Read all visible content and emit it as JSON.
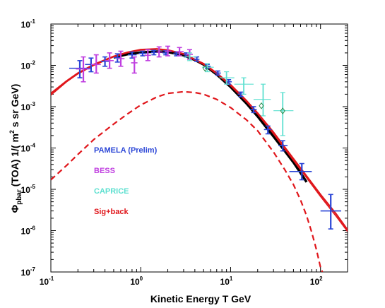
{
  "chart_data": {
    "type": "scatter",
    "xlabel": "Kinetic Energy T   GeV",
    "ylabel_parts": {
      "symbol": "Φ",
      "sub": "pbar",
      "mid": " (TOA)  1/( m",
      "sup": "2",
      "end": " s sr GeV)"
    },
    "x_scale": "log",
    "y_scale": "log",
    "xlim": [
      0.1,
      200
    ],
    "ylim": [
      1e-07,
      0.1
    ],
    "x_ticks": [
      {
        "base": "10",
        "exp": "-1"
      },
      {
        "base": "10",
        "exp": "0"
      },
      {
        "base": "10",
        "exp": "1"
      },
      {
        "base": "10",
        "exp": "2"
      }
    ],
    "y_ticks": [
      {
        "base": "10",
        "exp": "-7"
      },
      {
        "base": "10",
        "exp": "-6"
      },
      {
        "base": "10",
        "exp": "-5"
      },
      {
        "base": "10",
        "exp": "-4"
      },
      {
        "base": "10",
        "exp": "-3"
      },
      {
        "base": "10",
        "exp": "-2"
      },
      {
        "base": "10",
        "exp": "-1"
      }
    ],
    "legend": [
      {
        "label": "PAMELA (Prelim)",
        "color": "#2a45d6"
      },
      {
        "label": "BESS",
        "color": "#c03fe0"
      },
      {
        "label": "CAPRICE",
        "color": "#5ee0d0"
      },
      {
        "label": "Sig+back",
        "color": "#e0161b"
      }
    ],
    "legend_placement": "lower-left",
    "series": [
      {
        "color": "#2a45d6",
        "marker": "errorbar",
        "points": [
          [
            0.21,
            0.0085,
            0.005,
            0.013,
            0.16,
            0.28
          ],
          [
            0.28,
            0.0105,
            0.007,
            0.015,
            0.24,
            0.33
          ],
          [
            0.4,
            0.0125,
            0.0095,
            0.016,
            0.36,
            0.45
          ],
          [
            0.55,
            0.0155,
            0.012,
            0.019,
            0.5,
            0.6
          ],
          [
            0.8,
            0.018,
            0.015,
            0.021,
            0.72,
            0.9
          ],
          [
            1.05,
            0.0195,
            0.017,
            0.022,
            0.95,
            1.15
          ],
          [
            1.4,
            0.0205,
            0.018,
            0.023,
            1.3,
            1.5
          ],
          [
            1.9,
            0.02,
            0.018,
            0.0225,
            1.75,
            2.05
          ],
          [
            2.5,
            0.019,
            0.017,
            0.021,
            2.3,
            2.7
          ],
          [
            3.2,
            0.018,
            0.016,
            0.02,
            3.0,
            3.5
          ],
          [
            4.2,
            0.014,
            0.0125,
            0.016,
            3.9,
            4.5
          ],
          [
            5.5,
            0.0095,
            0.0085,
            0.0105,
            5.1,
            6.0
          ],
          [
            7.2,
            0.0065,
            0.0058,
            0.0073,
            6.7,
            7.8
          ],
          [
            9.5,
            0.004,
            0.0035,
            0.0045,
            8.8,
            10.3
          ],
          [
            13.0,
            0.002,
            0.00175,
            0.00225,
            12.0,
            14.0
          ],
          [
            18.0,
            0.00085,
            0.00072,
            0.001,
            16.5,
            19.5
          ],
          [
            26.0,
            0.00028,
            0.00022,
            0.00034,
            23.5,
            28.5
          ],
          [
            38.0,
            0.000115,
            8.5e-05,
            0.00015,
            34.0,
            43.0
          ],
          [
            62.0,
            2.7e-05,
            1.7e-05,
            4.2e-05,
            45.0,
            80.0
          ],
          [
            130.0,
            3e-06,
            1.1e-06,
            7.5e-06,
            100.0,
            170.0
          ]
        ]
      },
      {
        "color": "#c03fe0",
        "marker": "errorbar",
        "points": [
          [
            0.23,
            0.0082,
            0.004,
            0.016,
            0.19,
            0.27
          ],
          [
            0.32,
            0.0105,
            0.0065,
            0.018,
            0.28,
            0.36
          ],
          [
            0.45,
            0.013,
            0.0085,
            0.02,
            0.4,
            0.5
          ],
          [
            0.6,
            0.0145,
            0.0095,
            0.022,
            0.55,
            0.66
          ],
          [
            0.85,
            0.0115,
            0.0065,
            0.016,
            0.78,
            0.92
          ],
          [
            1.2,
            0.0175,
            0.013,
            0.024,
            1.1,
            1.3
          ],
          [
            1.6,
            0.021,
            0.016,
            0.028,
            1.5,
            1.75
          ],
          [
            2.0,
            0.022,
            0.017,
            0.029,
            1.85,
            2.2
          ],
          [
            2.7,
            0.0215,
            0.017,
            0.027,
            2.5,
            3.0
          ],
          [
            3.5,
            0.0185,
            0.014,
            0.024,
            3.2,
            3.8
          ]
        ]
      },
      {
        "color": "#5ee0d0",
        "marker": "errorbar",
        "points": [
          [
            3.5,
            0.016,
            0.013,
            0.02,
            3.0,
            4.2
          ],
          [
            5.5,
            0.009,
            0.007,
            0.011,
            4.8,
            6.5
          ],
          [
            9.0,
            0.005,
            0.0035,
            0.007,
            7.5,
            11.0
          ],
          [
            14.0,
            0.0035,
            0.002,
            0.005,
            11.0,
            18.0
          ],
          [
            23.0,
            0.0015,
            0.0006,
            0.0035,
            18.0,
            28.0
          ],
          [
            38.0,
            0.0008,
            0.0002,
            0.0022,
            30.0,
            50.0
          ]
        ]
      },
      {
        "color": "#2a8a4a",
        "marker": "diamond",
        "points": [
          [
            5.2,
            0.0085
          ],
          [
            22.0,
            0.00105
          ],
          [
            38.0,
            0.00079
          ]
        ]
      }
    ],
    "curves": [
      {
        "color": "#000000",
        "style": "solid",
        "width": 3.5,
        "points": [
          [
            0.5,
            0.0155
          ],
          [
            0.7,
            0.0185
          ],
          [
            1.0,
            0.0205
          ],
          [
            1.5,
            0.0215
          ],
          [
            2.0,
            0.021
          ],
          [
            3.0,
            0.0175
          ],
          [
            4.0,
            0.0135
          ],
          [
            5.0,
            0.0105
          ],
          [
            7.0,
            0.006
          ],
          [
            10.0,
            0.003
          ],
          [
            15.0,
            0.0012
          ],
          [
            20.0,
            0.00058
          ],
          [
            30.0,
            0.00019
          ],
          [
            40.0,
            8.5e-05
          ],
          [
            50.0,
            4.5e-05
          ],
          [
            60.0,
            2.5e-05
          ],
          [
            70.0,
            1.5e-05
          ]
        ]
      },
      {
        "color": "#e0161b",
        "style": "solid",
        "width": 2.2,
        "points": [
          [
            0.1,
            0.0021
          ],
          [
            0.15,
            0.0042
          ],
          [
            0.2,
            0.0065
          ],
          [
            0.3,
            0.0105
          ],
          [
            0.5,
            0.0165
          ],
          [
            0.7,
            0.0205
          ],
          [
            1.0,
            0.024
          ],
          [
            1.5,
            0.025
          ],
          [
            2.0,
            0.0235
          ],
          [
            3.0,
            0.019
          ],
          [
            5.0,
            0.011
          ],
          [
            7.0,
            0.0065
          ],
          [
            10.0,
            0.0034
          ],
          [
            15.0,
            0.0014
          ],
          [
            20.0,
            0.0007
          ],
          [
            30.0,
            0.00024
          ],
          [
            50.0,
            5.5e-05
          ],
          [
            70.0,
            2.1e-05
          ],
          [
            100.0,
            7.5e-06
          ],
          [
            150.0,
            2.5e-06
          ],
          [
            200.0,
            1.05e-06
          ]
        ]
      },
      {
        "color": "#e0161b",
        "style": "solid",
        "width": 1.6,
        "points": [
          [
            0.1,
            0.0019
          ],
          [
            0.15,
            0.004
          ],
          [
            0.2,
            0.0062
          ],
          [
            0.3,
            0.01
          ],
          [
            0.5,
            0.016
          ],
          [
            0.7,
            0.02
          ],
          [
            1.0,
            0.0235
          ],
          [
            1.5,
            0.0245
          ],
          [
            2.0,
            0.023
          ],
          [
            3.0,
            0.0185
          ],
          [
            5.0,
            0.0105
          ],
          [
            7.0,
            0.0062
          ],
          [
            10.0,
            0.0032
          ],
          [
            15.0,
            0.00132
          ],
          [
            20.0,
            0.00066
          ],
          [
            30.0,
            0.00022
          ],
          [
            50.0,
            5e-05
          ],
          [
            70.0,
            1.9e-05
          ],
          [
            100.0,
            6.7e-06
          ],
          [
            150.0,
            2.2e-06
          ],
          [
            200.0,
            9.5e-07
          ]
        ]
      },
      {
        "color": "#e0161b",
        "style": "dashed",
        "width": 2.2,
        "points": [
          [
            0.1,
            1.7e-05
          ],
          [
            0.15,
            3.8e-05
          ],
          [
            0.2,
            7e-05
          ],
          [
            0.3,
            0.00016
          ],
          [
            0.5,
            0.00038
          ],
          [
            0.7,
            0.00065
          ],
          [
            1.0,
            0.0011
          ],
          [
            1.5,
            0.0017
          ],
          [
            2.0,
            0.0021
          ],
          [
            3.0,
            0.0023
          ],
          [
            4.0,
            0.0022
          ],
          [
            5.0,
            0.002
          ],
          [
            7.0,
            0.0015
          ],
          [
            10.0,
            0.00095
          ],
          [
            15.0,
            0.00048
          ],
          [
            20.0,
            0.00026
          ],
          [
            30.0,
            8e-05
          ],
          [
            40.0,
            3e-05
          ],
          [
            50.0,
            1.3e-05
          ],
          [
            60.0,
            5.5e-06
          ],
          [
            70.0,
            2.3e-06
          ],
          [
            80.0,
            9e-07
          ],
          [
            90.0,
            3.5e-07
          ],
          [
            100.0,
            1.3e-07
          ],
          [
            105.0,
            1e-07
          ]
        ]
      }
    ]
  }
}
